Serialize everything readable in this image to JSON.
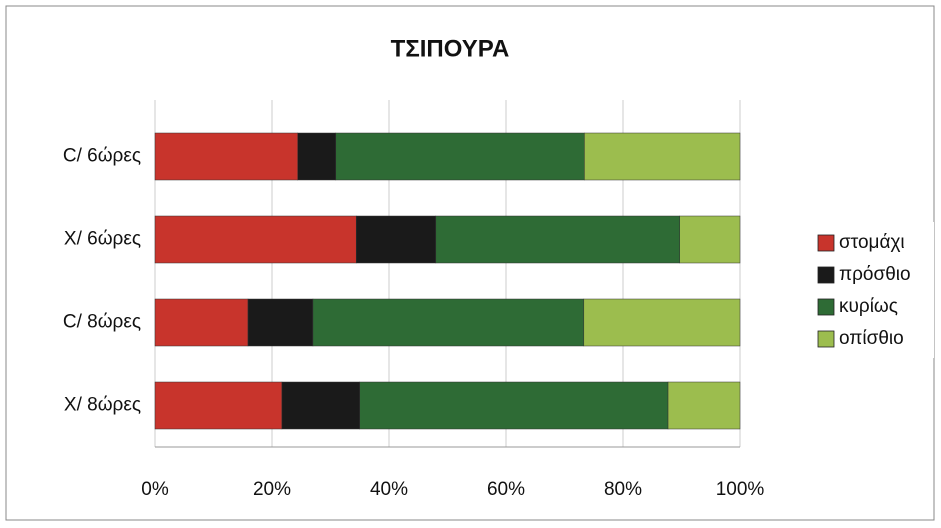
{
  "chart_data": {
    "type": "stacked_bar_horizontal",
    "title": "ΤΣΙΠΟΥΡΑ",
    "categories": [
      "C/ 6ώρες",
      "Χ/ 6ώρες",
      "C/ 8ώρες",
      "Χ/ 8ώρες"
    ],
    "series": [
      {
        "name": "στομάχι",
        "color": "#c8342c",
        "values": [
          24.4,
          34.4,
          15.9,
          21.7
        ]
      },
      {
        "name": "πρόσθιο",
        "color": "#1a1a1a",
        "values": [
          6.5,
          13.6,
          11.1,
          13.3
        ]
      },
      {
        "name": "κυρίως",
        "color": "#2e6b35",
        "values": [
          42.5,
          41.7,
          46.3,
          52.7
        ]
      },
      {
        "name": "οπίσθιο",
        "color": "#9cbd4e",
        "values": [
          26.6,
          10.3,
          26.7,
          12.3
        ]
      }
    ],
    "xlim": [
      0,
      100
    ],
    "xticks": [
      {
        "value": 0,
        "label": "0%"
      },
      {
        "value": 20,
        "label": "20%"
      },
      {
        "value": 40,
        "label": "40%"
      },
      {
        "value": 60,
        "label": "60%"
      },
      {
        "value": 80,
        "label": "80%"
      },
      {
        "value": 100,
        "label": "100%"
      }
    ],
    "grid": true,
    "legend": "right"
  }
}
